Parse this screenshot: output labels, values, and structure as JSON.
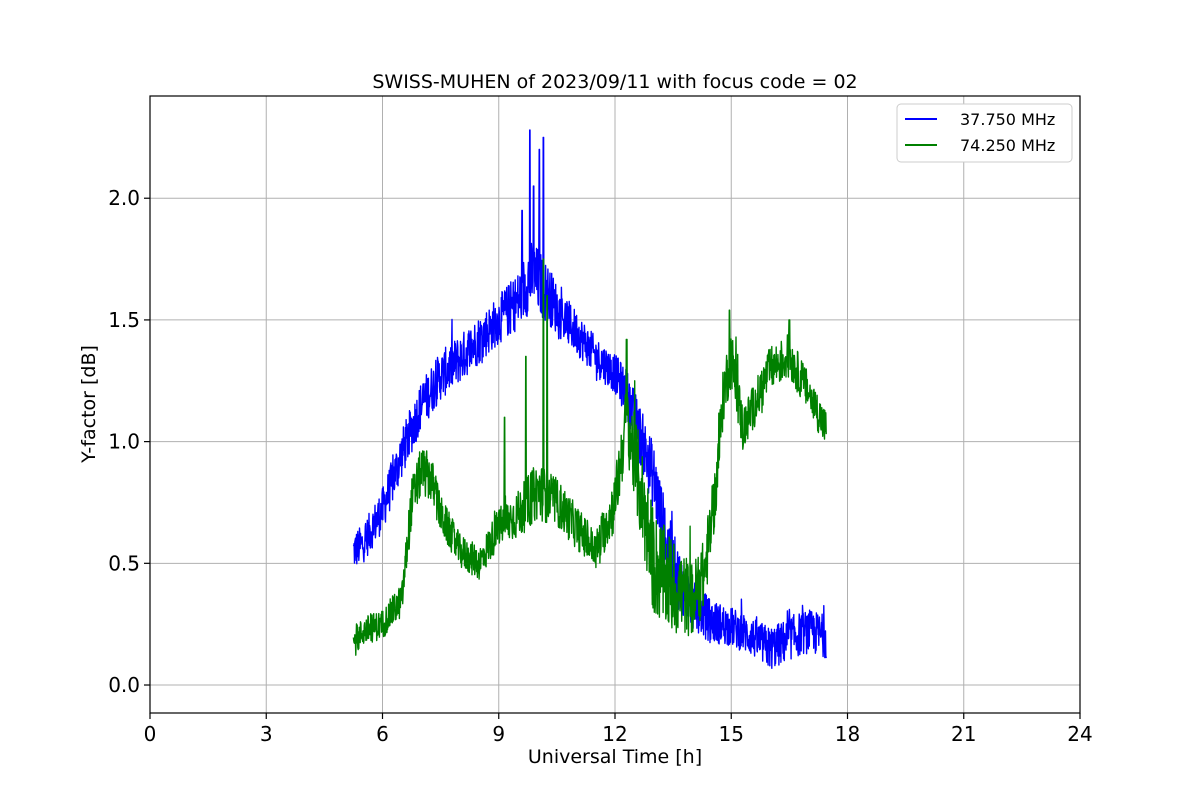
{
  "chart_data": {
    "type": "line",
    "title": "SWISS-MUHEN of 2023/09/11 with focus code = 02",
    "xlabel": "Universal Time [h]",
    "ylabel": "Y-factor [dB]",
    "xlim": [
      0,
      24
    ],
    "ylim": [
      -0.115,
      2.42
    ],
    "xticks": [
      0,
      3,
      6,
      9,
      12,
      15,
      18,
      21,
      24
    ],
    "xtick_labels": [
      "0",
      "3",
      "6",
      "9",
      "12",
      "15",
      "18",
      "21",
      "24"
    ],
    "yticks": [
      0.0,
      0.5,
      1.0,
      1.5,
      2.0
    ],
    "ytick_labels": [
      "0.0",
      "0.5",
      "1.0",
      "1.5",
      "2.0"
    ],
    "grid": true,
    "legend_position": "top-right",
    "series": [
      {
        "name": "37.750 MHz",
        "color": "#0000ff",
        "x": [
          5.25,
          5.5,
          6.0,
          6.5,
          7.0,
          7.5,
          8.0,
          8.5,
          9.0,
          9.5,
          9.8,
          10.0,
          10.3,
          10.6,
          11.0,
          11.5,
          12.0,
          12.3,
          12.6,
          13.0,
          13.3,
          13.6,
          14.0,
          14.5,
          15.0,
          15.5,
          16.0,
          16.3,
          16.6,
          17.0,
          17.45
        ],
        "y": [
          0.55,
          0.58,
          0.72,
          0.95,
          1.15,
          1.27,
          1.34,
          1.42,
          1.5,
          1.58,
          1.68,
          1.66,
          1.6,
          1.52,
          1.45,
          1.35,
          1.28,
          1.2,
          1.05,
          0.85,
          0.6,
          0.45,
          0.33,
          0.26,
          0.24,
          0.2,
          0.15,
          0.17,
          0.2,
          0.22,
          0.2
        ],
        "spread": [
          0.08,
          0.08,
          0.09,
          0.1,
          0.1,
          0.1,
          0.1,
          0.1,
          0.1,
          0.12,
          0.15,
          0.14,
          0.12,
          0.1,
          0.09,
          0.08,
          0.08,
          0.1,
          0.12,
          0.14,
          0.15,
          0.13,
          0.1,
          0.09,
          0.08,
          0.08,
          0.09,
          0.09,
          0.09,
          0.09,
          0.09
        ],
        "peaks": [
          {
            "x": 9.8,
            "y": 2.28
          },
          {
            "x": 9.9,
            "y": 2.05
          },
          {
            "x": 10.05,
            "y": 2.2
          },
          {
            "x": 10.15,
            "y": 2.25
          },
          {
            "x": 9.6,
            "y": 1.95
          }
        ]
      },
      {
        "name": "74.250 MHz",
        "color": "#008000",
        "x": [
          5.25,
          5.5,
          6.0,
          6.5,
          6.75,
          7.0,
          7.25,
          7.5,
          8.0,
          8.5,
          9.0,
          9.5,
          10.0,
          10.5,
          11.0,
          11.5,
          12.0,
          12.3,
          12.6,
          13.0,
          13.5,
          14.0,
          14.3,
          14.6,
          14.8,
          15.0,
          15.3,
          15.6,
          16.0,
          16.5,
          17.0,
          17.45
        ],
        "y": [
          0.17,
          0.22,
          0.25,
          0.35,
          0.75,
          0.88,
          0.85,
          0.7,
          0.55,
          0.5,
          0.65,
          0.7,
          0.8,
          0.75,
          0.65,
          0.55,
          0.75,
          1.1,
          0.85,
          0.5,
          0.4,
          0.35,
          0.45,
          0.8,
          1.2,
          1.35,
          1.05,
          1.15,
          1.3,
          1.35,
          1.2,
          1.05
        ],
        "spread": [
          0.06,
          0.06,
          0.06,
          0.07,
          0.1,
          0.1,
          0.1,
          0.08,
          0.07,
          0.07,
          0.08,
          0.1,
          0.12,
          0.1,
          0.09,
          0.08,
          0.12,
          0.15,
          0.2,
          0.22,
          0.2,
          0.15,
          0.15,
          0.12,
          0.12,
          0.12,
          0.1,
          0.09,
          0.09,
          0.09,
          0.08,
          0.08
        ],
        "peaks": [
          {
            "x": 10.15,
            "y": 1.75
          },
          {
            "x": 10.25,
            "y": 1.6
          },
          {
            "x": 9.7,
            "y": 1.35
          },
          {
            "x": 12.3,
            "y": 1.42
          },
          {
            "x": 14.95,
            "y": 1.54
          },
          {
            "x": 16.5,
            "y": 1.5
          },
          {
            "x": 9.15,
            "y": 1.1
          }
        ]
      }
    ]
  }
}
